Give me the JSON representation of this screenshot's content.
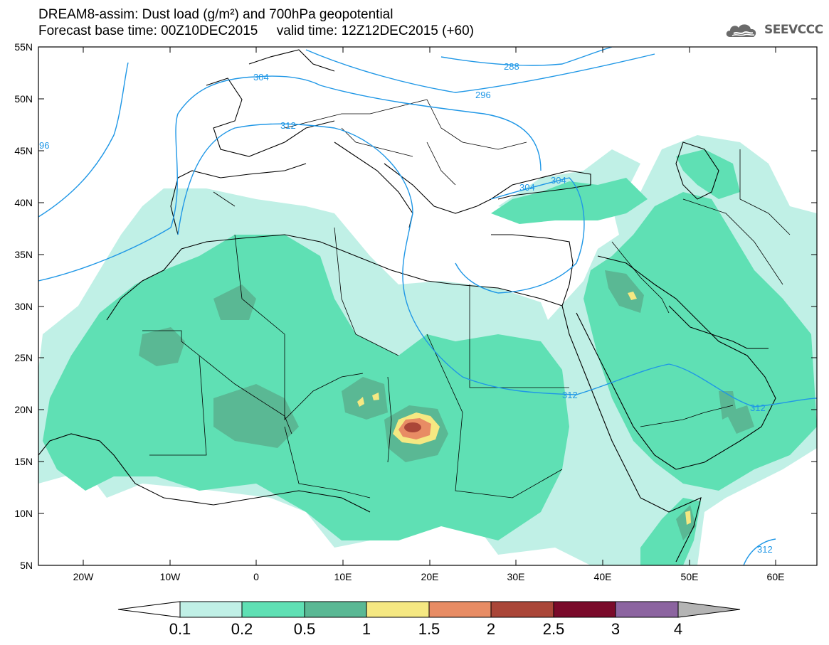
{
  "header": {
    "title_line1": "DREAM8-assim: Dust load (g/m²) and 700hPa geopotential",
    "title_line2": "Forecast base time: 00Z10DEC2015     valid time: 12Z12DEC2015 (+60)"
  },
  "logo": {
    "text": "SEEVCCC",
    "icon": "cloud-icon",
    "color": "#5f5f5f"
  },
  "map": {
    "lat_labels": [
      "55N",
      "50N",
      "45N",
      "40N",
      "35N",
      "30N",
      "25N",
      "20N",
      "15N",
      "10N",
      "5N"
    ],
    "lon_labels": [
      "20W",
      "10W",
      "0",
      "10E",
      "20E",
      "30E",
      "40E",
      "50E",
      "60E"
    ],
    "contour_labels": [
      "288",
      "296",
      "304",
      "304",
      "304",
      "312",
      "312",
      "312",
      "312",
      "96"
    ],
    "colors": {
      "contour": "#1f97e6",
      "border": "#000000"
    }
  },
  "colorbar": {
    "tick_labels": [
      "0.1",
      "0.2",
      "0.5",
      "1",
      "1.5",
      "2",
      "2.5",
      "3",
      "4"
    ],
    "colors": [
      "#c0f0e6",
      "#5fe0b4",
      "#5ab894",
      "#f5e882",
      "#e88c64",
      "#aa4638",
      "#7a0a2a",
      "#8c64a0",
      "#b4b4b4"
    ]
  }
}
